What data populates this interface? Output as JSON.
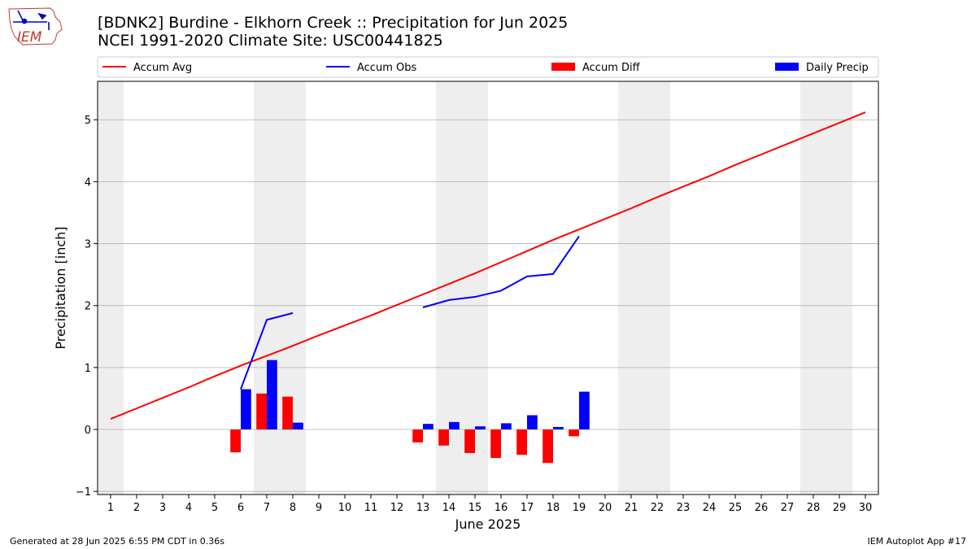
{
  "header": {
    "title_line1": "[BDNK2] Burdine - Elkhorn Creek :: Precipitation for Jun 2025",
    "title_line2": "NCEI 1991-2020 Climate Site: USC00441825"
  },
  "logo": {
    "text": "IEM"
  },
  "footer": {
    "left": "Generated at 28 Jun 2025 6:55 PM CDT in 0.36s",
    "right": "IEM Autoplot App #17"
  },
  "colors": {
    "accum_avg": "#ff0000",
    "accum_obs": "#0000ff",
    "accum_diff": "#ff0000",
    "daily_precip": "#0000ff",
    "weekend_band": "#eeeeee",
    "grid": "#b0b0b0"
  },
  "chart_data": {
    "type": "bar",
    "xlabel": "June 2025",
    "ylabel": "Precipitation [inch]",
    "xlim": [
      0.5,
      30.5
    ],
    "ylim": [
      -1.05,
      5.62
    ],
    "x_ticks": [
      1,
      2,
      3,
      4,
      5,
      6,
      7,
      8,
      9,
      10,
      11,
      12,
      13,
      14,
      15,
      16,
      17,
      18,
      19,
      20,
      21,
      22,
      23,
      24,
      25,
      26,
      27,
      28,
      29,
      30
    ],
    "y_ticks": [
      -1,
      0,
      1,
      2,
      3,
      4,
      5
    ],
    "grid": "horizontal",
    "legend_position": "top",
    "legend": [
      "Accum Avg",
      "Accum Obs",
      "Accum Diff",
      "Daily Precip"
    ],
    "weekend_bands": [
      [
        0.5,
        1.5
      ],
      [
        6.5,
        8.5
      ],
      [
        13.5,
        15.5
      ],
      [
        20.5,
        22.5
      ],
      [
        27.5,
        29.5
      ]
    ],
    "series": [
      {
        "name": "Accum Avg",
        "kind": "line",
        "x": [
          1,
          2,
          3,
          4,
          5,
          6,
          7,
          8,
          9,
          10,
          11,
          12,
          13,
          14,
          15,
          16,
          17,
          18,
          19,
          20,
          21,
          22,
          23,
          24,
          25,
          26,
          27,
          28,
          29,
          30
        ],
        "values": [
          0.17,
          0.34,
          0.51,
          0.68,
          0.86,
          1.03,
          1.19,
          1.35,
          1.52,
          1.68,
          1.84,
          2.01,
          2.18,
          2.35,
          2.52,
          2.7,
          2.88,
          3.06,
          3.23,
          3.4,
          3.57,
          3.75,
          3.92,
          4.09,
          4.27,
          4.44,
          4.61,
          4.78,
          4.95,
          5.12
        ]
      },
      {
        "name": "Accum Obs",
        "kind": "line",
        "segments": [
          {
            "x": [
              6,
              7,
              8
            ],
            "values": [
              0.65,
              1.77,
              1.88
            ]
          },
          {
            "x": [
              13,
              14,
              15,
              16,
              17,
              18,
              19
            ],
            "values": [
              1.97,
              2.09,
              2.14,
              2.24,
              2.47,
              2.51,
              3.12
            ]
          }
        ]
      },
      {
        "name": "Accum Diff",
        "kind": "bar",
        "x": [
          6,
          7,
          8,
          13,
          14,
          15,
          16,
          17,
          18,
          19
        ],
        "values": [
          -0.37,
          0.58,
          0.53,
          -0.21,
          -0.26,
          -0.38,
          -0.46,
          -0.41,
          -0.54,
          -0.11
        ]
      },
      {
        "name": "Daily Precip",
        "kind": "bar",
        "x": [
          6,
          7,
          8,
          13,
          14,
          15,
          16,
          17,
          18,
          19
        ],
        "values": [
          0.65,
          1.12,
          0.11,
          0.09,
          0.12,
          0.05,
          0.1,
          0.23,
          0.04,
          0.61
        ]
      }
    ]
  }
}
